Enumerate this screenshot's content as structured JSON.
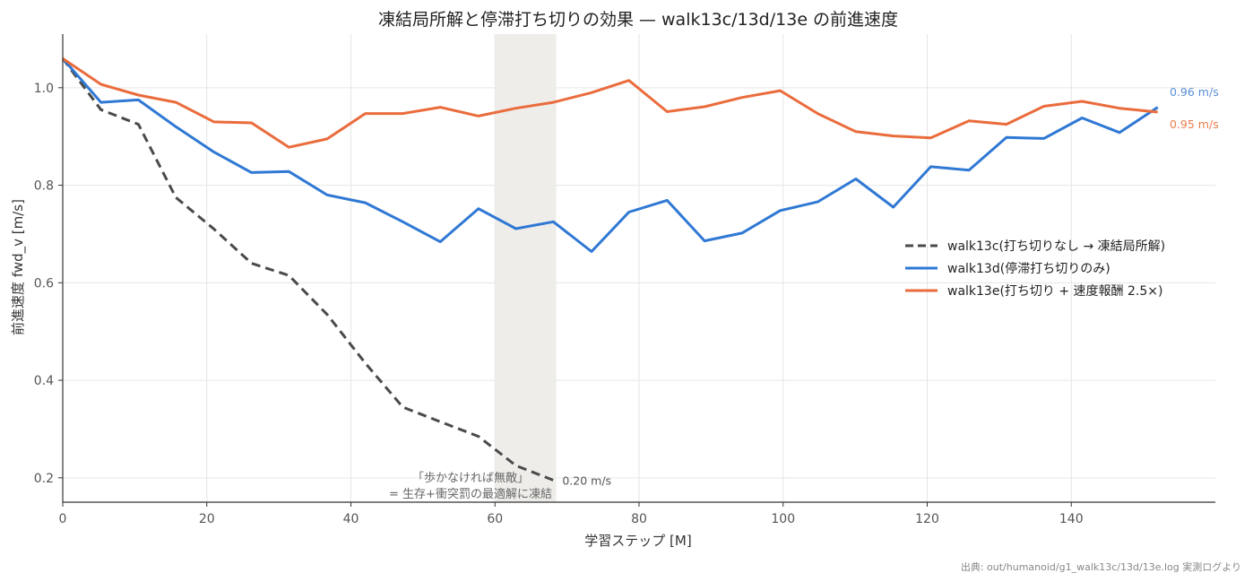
{
  "chart_data": {
    "type": "line",
    "title": "凍結局所解と停滞打ち切りの効果 — walk13c/13d/13e の前進速度",
    "xlabel": "学習ステップ [M]",
    "ylabel": "前進速度 fwd_v [m/s]",
    "xlim": [
      0,
      160
    ],
    "ylim": [
      0.15,
      1.11
    ],
    "xticks": [
      0,
      20,
      40,
      60,
      80,
      100,
      120,
      140
    ],
    "yticks": [
      0.2,
      0.4,
      0.6,
      0.8,
      1.0
    ],
    "ytick_labels": [
      "0.2",
      "0.4",
      "0.6",
      "0.8",
      "1.0"
    ],
    "grid": true,
    "legend_position": "right",
    "shaded_region": {
      "x_start": 60,
      "x_end": 68.5,
      "color": "#eeede9"
    },
    "series": [
      {
        "name": "walk13c(打ち切りなし → 凍結局所解)",
        "color": "#4a4a4a",
        "dash": "dashed",
        "end_label": "0.20 m/s",
        "x": [
          0,
          2,
          5.3,
          10.5,
          15.7,
          21,
          26.2,
          31.4,
          36.7,
          42,
          47.2,
          52.4,
          57.7,
          62.9,
          68.1
        ],
        "y": [
          1.06,
          1.02,
          0.955,
          0.925,
          0.775,
          0.71,
          0.64,
          0.615,
          0.535,
          0.435,
          0.345,
          0.315,
          0.285,
          0.225,
          0.195
        ]
      },
      {
        "name": "walk13d(停滞打ち切りのみ)",
        "color": "#2f78d4",
        "dash": "solid",
        "end_label": "0.96 m/s",
        "end_label_color": "#5b8fd6",
        "x": [
          0,
          5.3,
          10.5,
          15.7,
          21,
          26.2,
          31.4,
          36.7,
          42,
          47.2,
          52.4,
          57.7,
          62.9,
          68.1,
          73.4,
          78.6,
          83.9,
          89.1,
          94.3,
          99.6,
          104.8,
          110.1,
          115.3,
          120.5,
          125.8,
          131,
          136.2,
          141.5,
          146.7,
          152
        ],
        "y": [
          1.06,
          0.97,
          0.975,
          0.92,
          0.868,
          0.826,
          0.828,
          0.78,
          0.764,
          0.725,
          0.684,
          0.752,
          0.711,
          0.725,
          0.664,
          0.745,
          0.769,
          0.686,
          0.702,
          0.748,
          0.766,
          0.813,
          0.755,
          0.838,
          0.831,
          0.898,
          0.896,
          0.938,
          0.908,
          0.96
        ]
      },
      {
        "name": "walk13e(打ち切り + 速度報酬 2.5×)",
        "color": "#ea6c3c",
        "dash": "solid",
        "end_label": "0.95 m/s",
        "end_label_color": "#ea7c4d",
        "x": [
          0,
          5.3,
          10.5,
          15.7,
          21,
          26.2,
          31.4,
          36.7,
          42,
          47.2,
          52.4,
          57.7,
          62.9,
          68.1,
          73.4,
          78.6,
          83.9,
          89.1,
          94.3,
          99.6,
          104.8,
          110.1,
          115.3,
          120.5,
          125.8,
          131,
          136.2,
          141.5,
          146.7,
          152
        ],
        "y": [
          1.06,
          1.007,
          0.985,
          0.97,
          0.93,
          0.928,
          0.878,
          0.895,
          0.947,
          0.947,
          0.96,
          0.942,
          0.958,
          0.97,
          0.99,
          1.015,
          0.951,
          0.961,
          0.98,
          0.994,
          0.947,
          0.91,
          0.901,
          0.897,
          0.932,
          0.925,
          0.962,
          0.972,
          0.958,
          0.95
        ]
      }
    ],
    "annotation_lines": [
      "「歩かなければ無敵」",
      "= 生存+衝突罰の最適解に凍結"
    ],
    "source_note": "出典: out/humanoid/g1_walk13c/13d/13e.log 実測ログより"
  }
}
